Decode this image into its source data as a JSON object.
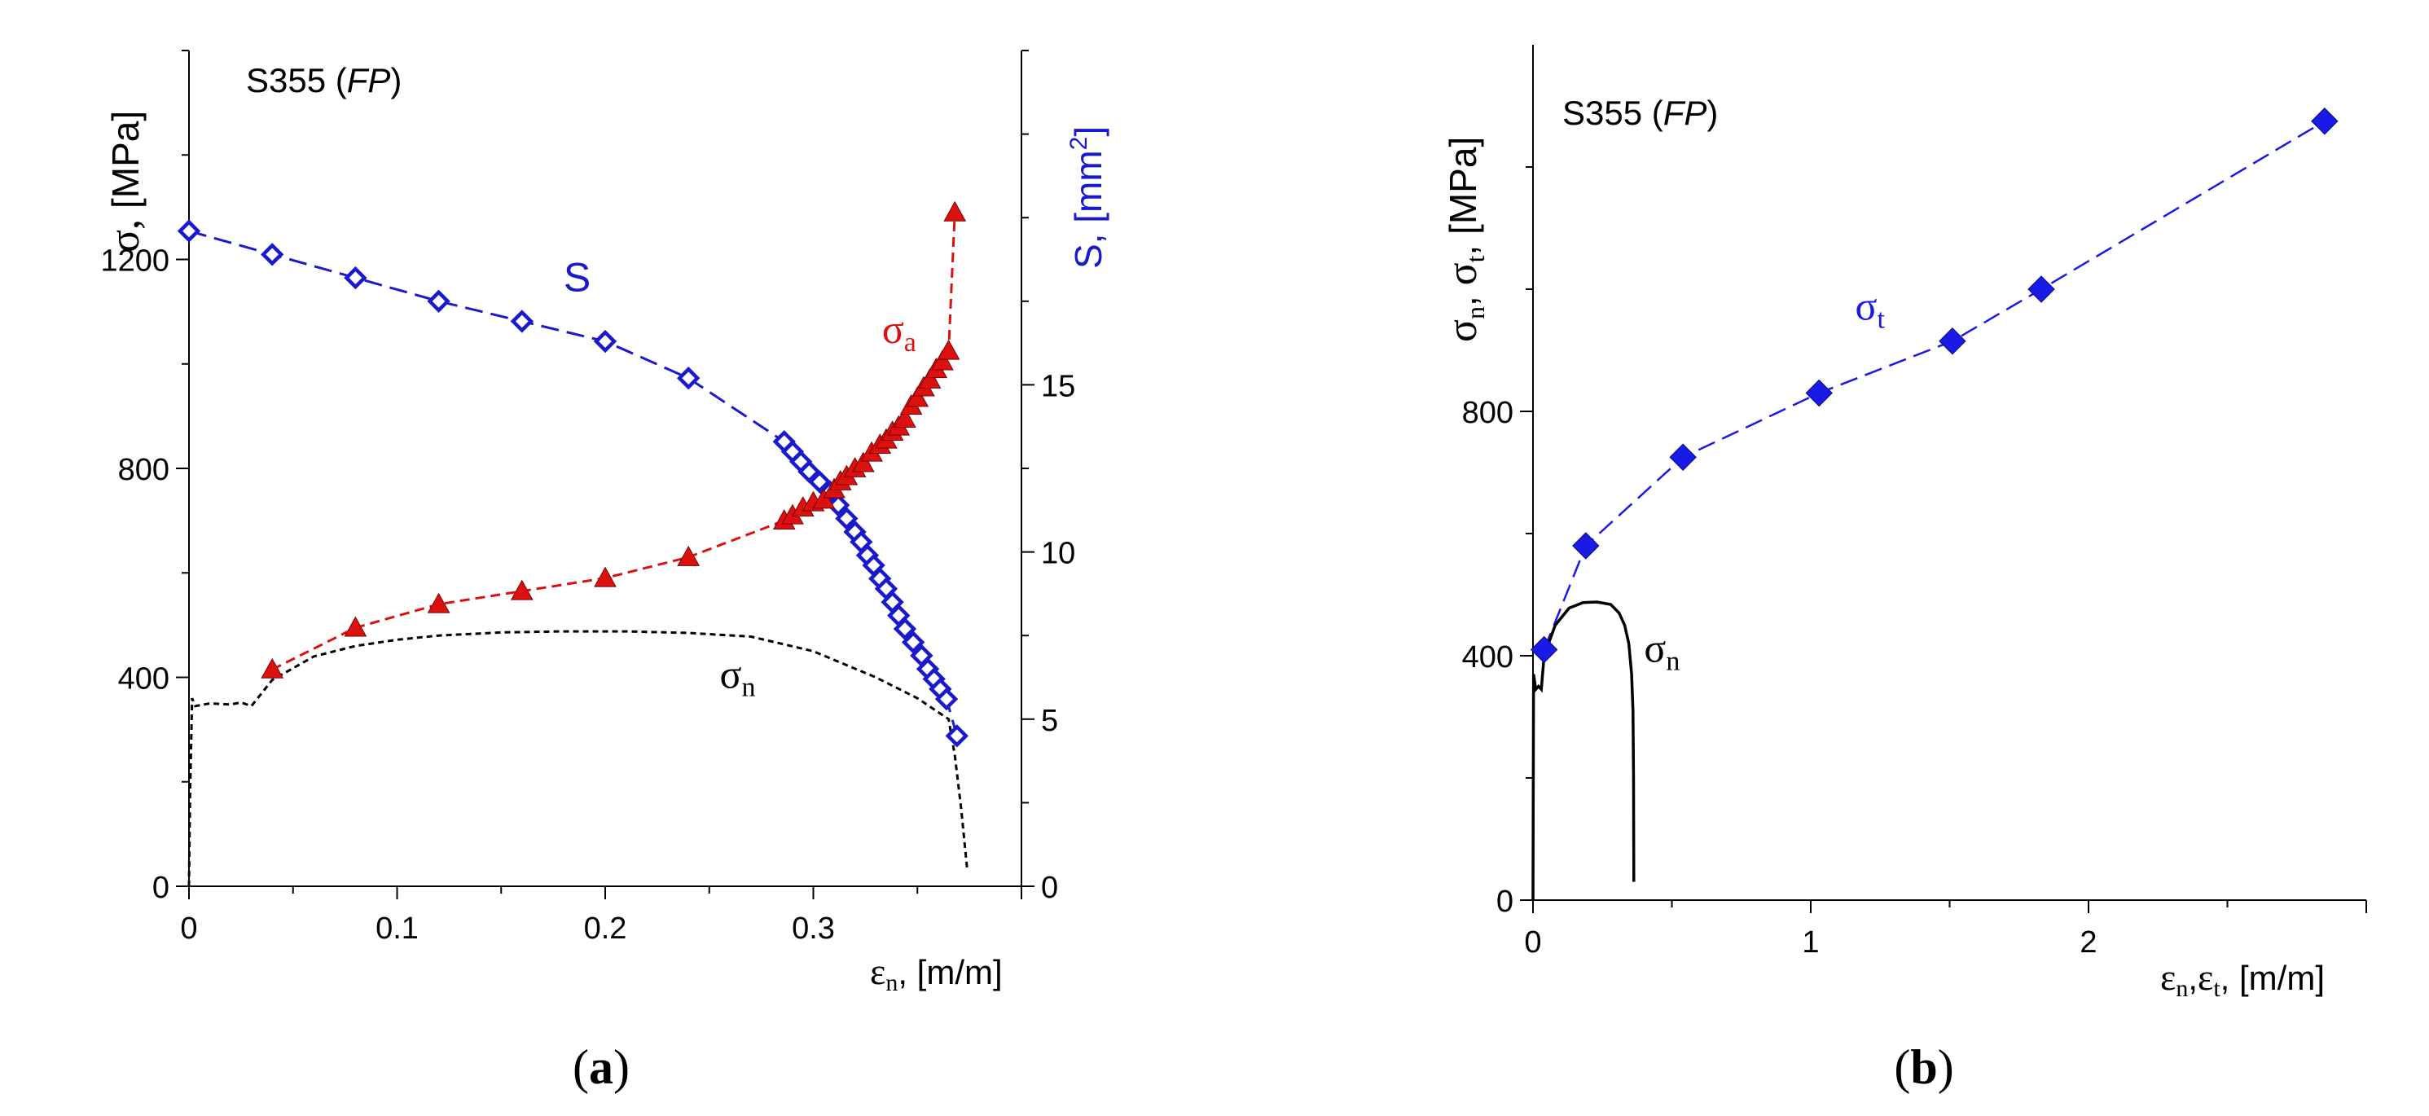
{
  "chart_data": [
    {
      "panel": "a",
      "type": "scatter",
      "title": "S355 (FP)",
      "title_material": "S355 (",
      "title_italic": "FP",
      "title_close": ")",
      "caption": "(a)",
      "caption_open": "(",
      "caption_letter": "a",
      "caption_close": ")",
      "xlabel": "εn, [m/m]",
      "xlabel_sym": "ε",
      "xlabel_sub": "n",
      "xlabel_unit": ", [m/m]",
      "ylabel_left": "σ, [MPa]",
      "ylabel_left_sym": "σ, ",
      "ylabel_left_unit": "[MPa]",
      "ylabel_right": "S, [mm2]",
      "ylabel_right_text": "S, [mm",
      "ylabel_right_sup": "2",
      "ylabel_right_close": "]",
      "xlim": [
        0,
        0.4
      ],
      "ylim_left": [
        0,
        1600
      ],
      "ylim_right": [
        0,
        25
      ],
      "xticks": [
        0,
        0.1,
        0.2,
        0.3
      ],
      "xtick_labels": [
        "0",
        "0.1",
        "0.2",
        "0.3"
      ],
      "yticks_left": [
        0,
        400,
        800,
        1200
      ],
      "ytick_labels_left": [
        "0",
        "400",
        "800",
        "1200"
      ],
      "yticks_right": [
        0,
        5,
        10,
        15
      ],
      "ytick_labels_right": [
        "0",
        "5",
        "10",
        "15"
      ],
      "series": [
        {
          "name": "S",
          "label_text": "S",
          "axis": "right",
          "marker": "open-diamond",
          "color": "#1a1acc",
          "line": "long-dash",
          "label_at": [
            0.18,
            17.8
          ],
          "points": [
            [
              0,
              19.6
            ],
            [
              0.04,
              18.9
            ],
            [
              0.08,
              18.2
            ],
            [
              0.12,
              17.5
            ],
            [
              0.16,
              16.9
            ],
            [
              0.2,
              16.3
            ],
            [
              0.24,
              15.2
            ],
            [
              0.286,
              13.3
            ],
            [
              0.29,
              13.0
            ],
            [
              0.294,
              12.7
            ],
            [
              0.298,
              12.4
            ],
            [
              0.303,
              12.1
            ],
            [
              0.308,
              11.8
            ],
            [
              0.312,
              11.4
            ],
            [
              0.316,
              11.0
            ],
            [
              0.32,
              10.6
            ],
            [
              0.323,
              10.3
            ],
            [
              0.326,
              9.9
            ],
            [
              0.329,
              9.6
            ],
            [
              0.332,
              9.2
            ],
            [
              0.335,
              8.9
            ],
            [
              0.338,
              8.5
            ],
            [
              0.341,
              8.1
            ],
            [
              0.344,
              7.7
            ],
            [
              0.348,
              7.3
            ],
            [
              0.352,
              6.9
            ],
            [
              0.355,
              6.5
            ],
            [
              0.358,
              6.2
            ],
            [
              0.361,
              5.9
            ],
            [
              0.364,
              5.6
            ],
            [
              0.369,
              4.5
            ]
          ]
        },
        {
          "name": "σa",
          "label_sym": "σ",
          "label_sub": "a",
          "axis": "left",
          "marker": "filled-triangle",
          "color": "#dd1010",
          "line": "dash",
          "label_at": [
            0.333,
            1040
          ],
          "points": [
            [
              0.04,
              415
            ],
            [
              0.08,
              495
            ],
            [
              0.12,
              540
            ],
            [
              0.16,
              565
            ],
            [
              0.2,
              590
            ],
            [
              0.24,
              630
            ],
            [
              0.286,
              700
            ],
            [
              0.29,
              710
            ],
            [
              0.295,
              725
            ],
            [
              0.3,
              735
            ],
            [
              0.305,
              740
            ],
            [
              0.31,
              760
            ],
            [
              0.313,
              775
            ],
            [
              0.316,
              785
            ],
            [
              0.32,
              800
            ],
            [
              0.324,
              810
            ],
            [
              0.328,
              830
            ],
            [
              0.332,
              845
            ],
            [
              0.335,
              855
            ],
            [
              0.338,
              870
            ],
            [
              0.341,
              880
            ],
            [
              0.344,
              895
            ],
            [
              0.347,
              920
            ],
            [
              0.35,
              935
            ],
            [
              0.353,
              955
            ],
            [
              0.356,
              970
            ],
            [
              0.359,
              990
            ],
            [
              0.362,
              1005
            ],
            [
              0.365,
              1025
            ],
            [
              0.368,
              1290
            ]
          ]
        },
        {
          "name": "σn",
          "label_sym": "σ",
          "label_sub": "n",
          "axis": "left",
          "marker": "none",
          "color": "#000000",
          "line": "short-dash",
          "label_at": [
            0.255,
            380
          ],
          "points": [
            [
              0,
              0
            ],
            [
              0.0005,
              170
            ],
            [
              0.0015,
              360
            ],
            [
              0.003,
              345
            ],
            [
              0.01,
              350
            ],
            [
              0.02,
              348
            ],
            [
              0.025,
              352
            ],
            [
              0.03,
              345
            ],
            [
              0.04,
              395
            ],
            [
              0.06,
              440
            ],
            [
              0.08,
              460
            ],
            [
              0.1,
              472
            ],
            [
              0.12,
              480
            ],
            [
              0.15,
              486
            ],
            [
              0.18,
              488
            ],
            [
              0.21,
              488
            ],
            [
              0.24,
              485
            ],
            [
              0.27,
              478
            ],
            [
              0.3,
              450
            ],
            [
              0.33,
              400
            ],
            [
              0.35,
              360
            ],
            [
              0.365,
              320
            ],
            [
              0.368,
              250
            ],
            [
              0.371,
              150
            ],
            [
              0.374,
              30
            ]
          ]
        }
      ]
    },
    {
      "panel": "b",
      "type": "scatter",
      "title": "S355 (FP)",
      "title_material": "S355 (",
      "title_italic": "FP",
      "title_close": ")",
      "caption": "(b)",
      "caption_open": "(",
      "caption_letter": "b",
      "caption_close": ")",
      "xlabel": "εn,εt, [m/m]",
      "xlabel_sym1": "ε",
      "xlabel_sub1": "n",
      "xlabel_comma": ",",
      "xlabel_sym2": "ε",
      "xlabel_sub2": "t",
      "xlabel_unit": ", [m/m]",
      "ylabel": "σn, σt, [MPa]",
      "ylabel_sym1": "σ",
      "ylabel_sub1": "n",
      "ylabel_sep": ", ",
      "ylabel_sym2": "σ",
      "ylabel_sub2": "t",
      "ylabel_unit": ", [MPa]",
      "xlim": [
        0,
        3
      ],
      "ylim": [
        0,
        1400
      ],
      "xticks": [
        0,
        1,
        2
      ],
      "xtick_labels": [
        "0",
        "1",
        "2"
      ],
      "yticks": [
        0,
        400,
        800
      ],
      "ytick_labels": [
        "0",
        "400",
        "800"
      ],
      "yticks_minor": [
        200,
        600,
        1000,
        1200
      ],
      "series": [
        {
          "name": "σt",
          "label_sym": "σ",
          "label_sub": "t",
          "marker": "filled-diamond",
          "color": "#1a1ae6",
          "line": "long-dash",
          "label_at": [
            1.16,
            950
          ],
          "points": [
            [
              0.04,
              410
            ],
            [
              0.19,
              580
            ],
            [
              0.54,
              725
            ],
            [
              1.03,
              830
            ],
            [
              1.51,
              915
            ],
            [
              1.83,
              1000
            ],
            [
              2.85,
              1275
            ]
          ]
        },
        {
          "name": "σn",
          "label_sym": "σ",
          "label_sub": "n",
          "marker": "none",
          "color": "#000000",
          "line": "solid",
          "label_at": [
            0.4,
            390
          ],
          "points": [
            [
              0,
              0
            ],
            [
              0.002,
              370
            ],
            [
              0.01,
              345
            ],
            [
              0.02,
              350
            ],
            [
              0.03,
              345
            ],
            [
              0.04,
              400
            ],
            [
              0.08,
              450
            ],
            [
              0.13,
              478
            ],
            [
              0.18,
              487
            ],
            [
              0.23,
              488
            ],
            [
              0.28,
              484
            ],
            [
              0.31,
              470
            ],
            [
              0.33,
              450
            ],
            [
              0.345,
              420
            ],
            [
              0.355,
              370
            ],
            [
              0.36,
              310
            ],
            [
              0.362,
              200
            ],
            [
              0.363,
              30
            ]
          ]
        }
      ]
    }
  ]
}
